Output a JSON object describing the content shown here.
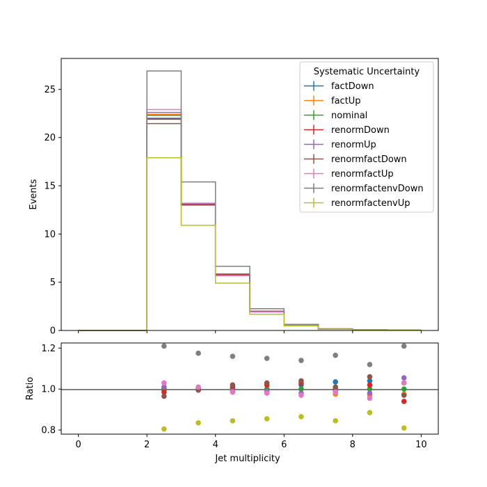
{
  "chart_data": [
    {
      "type": "line",
      "subtype": "step-histogram",
      "xlabel": "",
      "ylabel": "Events",
      "xlim": [
        -0.5,
        10.5
      ],
      "ylim": [
        0,
        28.2
      ],
      "bin_edges": [
        0,
        1,
        2,
        3,
        4,
        5,
        6,
        7,
        8,
        9,
        10
      ],
      "yticks": [
        0,
        5,
        10,
        15,
        20,
        25
      ],
      "ytick_labels": [
        "0",
        "5",
        "10",
        "15",
        "20",
        "25"
      ],
      "grid": false,
      "legend": {
        "title": "Systematic Uncertainty",
        "placement": "upper right"
      },
      "series": [
        {
          "name": "factDown",
          "color": "#1f77b4",
          "values": [
            0,
            0,
            22.0,
            13.1,
            5.8,
            2.0,
            0.56,
            0.16,
            0.065,
            0.03
          ]
        },
        {
          "name": "factUp",
          "color": "#ff7f0e",
          "values": [
            0,
            0,
            22.4,
            13.1,
            5.75,
            1.97,
            0.56,
            0.15,
            0.063,
            0.03
          ]
        },
        {
          "name": "nominal",
          "color": "#2ca02c",
          "values": [
            0,
            0,
            22.3,
            13.1,
            5.75,
            1.95,
            0.55,
            0.155,
            0.062,
            0.03
          ]
        },
        {
          "name": "renormDown",
          "color": "#d62728",
          "values": [
            0,
            0,
            21.9,
            13.0,
            5.8,
            2.0,
            0.57,
            0.155,
            0.063,
            0.028
          ]
        },
        {
          "name": "renormUp",
          "color": "#9467bd",
          "values": [
            0,
            0,
            22.6,
            13.15,
            5.7,
            1.93,
            0.54,
            0.153,
            0.061,
            0.032
          ]
        },
        {
          "name": "renormfactDown",
          "color": "#8c564b",
          "values": [
            0,
            0,
            21.45,
            13.05,
            5.85,
            2.0,
            0.57,
            0.158,
            0.066,
            0.029
          ]
        },
        {
          "name": "renormfactUp",
          "color": "#e377c2",
          "values": [
            0,
            0,
            22.9,
            13.2,
            5.68,
            1.92,
            0.535,
            0.153,
            0.059,
            0.031
          ]
        },
        {
          "name": "renormfactenvDown",
          "color": "#7f7f7f",
          "values": [
            0,
            0,
            26.9,
            15.4,
            6.65,
            2.25,
            0.63,
            0.18,
            0.07,
            0.036
          ]
        },
        {
          "name": "renormfactenvUp",
          "color": "#bcbd22",
          "values": [
            0,
            0,
            17.9,
            10.9,
            4.9,
            1.68,
            0.48,
            0.13,
            0.055,
            0.024
          ]
        }
      ]
    },
    {
      "type": "scatter",
      "xlabel": "Jet multiplicity",
      "ylabel": "Ratio",
      "xlim": [
        -0.5,
        10.5
      ],
      "ylim": [
        0.78,
        1.225
      ],
      "xticks": [
        0,
        2,
        4,
        6,
        8,
        10
      ],
      "xtick_labels": [
        "0",
        "2",
        "4",
        "6",
        "8",
        "10"
      ],
      "yticks": [
        0.8,
        1.0,
        1.2
      ],
      "ytick_labels": [
        "0.8",
        "1.0",
        "1.2"
      ],
      "reference_line": 1.0,
      "x": [
        2.5,
        3.5,
        4.5,
        5.5,
        6.5,
        7.5,
        8.5,
        9.5
      ],
      "series": [
        {
          "name": "factDown",
          "color": "#1f77b4",
          "values": [
            0.995,
            1.0,
            1.0,
            1.0,
            1.02,
            1.035,
            1.04,
            1.03
          ]
        },
        {
          "name": "factUp",
          "color": "#ff7f0e",
          "values": [
            1.005,
            1.0,
            1.0,
            0.99,
            1.0,
            0.975,
            0.97,
            0.975
          ]
        },
        {
          "name": "nominal",
          "color": "#2ca02c",
          "values": [
            1.0,
            1.0,
            1.0,
            1.0,
            1.0,
            1.0,
            1.0,
            1.0
          ]
        },
        {
          "name": "renormDown",
          "color": "#d62728",
          "values": [
            0.985,
            0.995,
            1.01,
            1.02,
            1.03,
            1.0,
            1.02,
            0.94
          ]
        },
        {
          "name": "renormUp",
          "color": "#9467bd",
          "values": [
            1.01,
            1.005,
            0.99,
            0.99,
            0.98,
            0.99,
            0.98,
            1.055
          ]
        },
        {
          "name": "renormfactDown",
          "color": "#8c564b",
          "values": [
            0.965,
            0.995,
            1.02,
            1.03,
            1.04,
            1.01,
            1.06,
            0.97
          ]
        },
        {
          "name": "renormfactUp",
          "color": "#e377c2",
          "values": [
            1.03,
            1.01,
            0.985,
            0.98,
            0.97,
            0.985,
            0.955,
            1.03
          ]
        },
        {
          "name": "renormfactenvDown",
          "color": "#7f7f7f",
          "values": [
            1.21,
            1.175,
            1.16,
            1.15,
            1.14,
            1.165,
            1.12,
            1.21
          ]
        },
        {
          "name": "renormfactenvUp",
          "color": "#bcbd22",
          "values": [
            0.805,
            0.835,
            0.845,
            0.855,
            0.865,
            0.845,
            0.885,
            0.81
          ]
        }
      ]
    }
  ]
}
